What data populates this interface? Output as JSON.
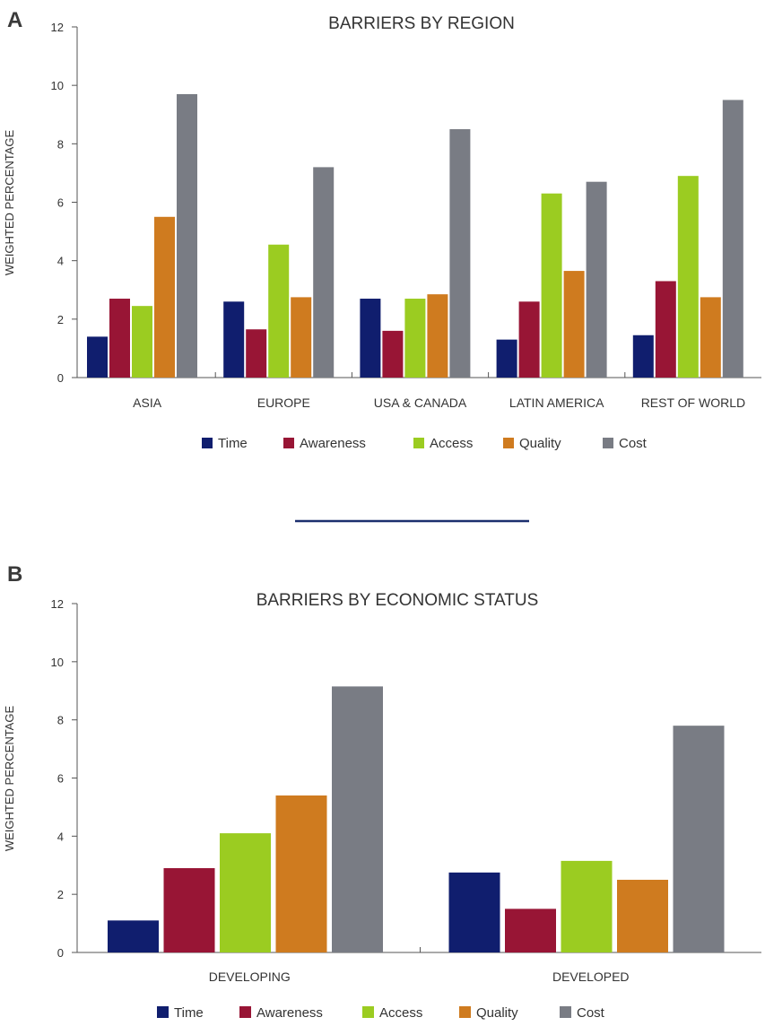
{
  "chart_data": [
    {
      "panel": "A",
      "type": "bar",
      "title": "BARRIERS BY REGION",
      "xlabel": "",
      "ylabel": "WEIGHTED PERCENTAGE",
      "ylim": [
        0,
        12
      ],
      "yticks": [
        "0",
        "2",
        "4",
        "6",
        "8",
        "10",
        "12"
      ],
      "grid": false,
      "legend_position": "bottom",
      "categories": [
        "ASIA",
        "EUROPE",
        "USA & CANADA",
        "LATIN AMERICA",
        "REST OF WORLD"
      ],
      "series": [
        {
          "name": "Time",
          "color": "#101e6e",
          "values": [
            1.4,
            2.6,
            2.7,
            1.3,
            1.45
          ]
        },
        {
          "name": "Awareness",
          "color": "#981535",
          "values": [
            2.7,
            1.65,
            1.6,
            2.6,
            3.3
          ]
        },
        {
          "name": "Access",
          "color": "#9bcc21",
          "values": [
            2.45,
            4.55,
            2.7,
            6.3,
            6.9
          ]
        },
        {
          "name": "Quality",
          "color": "#cf7b1f",
          "values": [
            5.5,
            2.75,
            2.85,
            3.65,
            2.75
          ]
        },
        {
          "name": "Cost",
          "color": "#797c84",
          "values": [
            9.7,
            7.2,
            8.5,
            6.7,
            9.5
          ]
        }
      ]
    },
    {
      "panel": "B",
      "type": "bar",
      "title": "BARRIERS BY ECONOMIC STATUS",
      "xlabel": "",
      "ylabel": "WEIGHTED PERCENTAGE",
      "ylim": [
        0,
        12
      ],
      "yticks": [
        "0",
        "2",
        "4",
        "6",
        "8",
        "10",
        "12"
      ],
      "grid": false,
      "legend_position": "bottom",
      "categories": [
        "DEVELOPING",
        "DEVELOPED"
      ],
      "series": [
        {
          "name": "Time",
          "color": "#101e6e",
          "values": [
            1.1,
            2.75
          ]
        },
        {
          "name": "Awareness",
          "color": "#981535",
          "values": [
            2.9,
            1.5
          ]
        },
        {
          "name": "Access",
          "color": "#9bcc21",
          "values": [
            4.1,
            3.15
          ]
        },
        {
          "name": "Quality",
          "color": "#cf7b1f",
          "values": [
            5.4,
            2.5
          ]
        },
        {
          "name": "Cost",
          "color": "#797c84",
          "values": [
            9.15,
            7.8
          ]
        }
      ]
    }
  ],
  "divider_color": "#1c2f6e"
}
